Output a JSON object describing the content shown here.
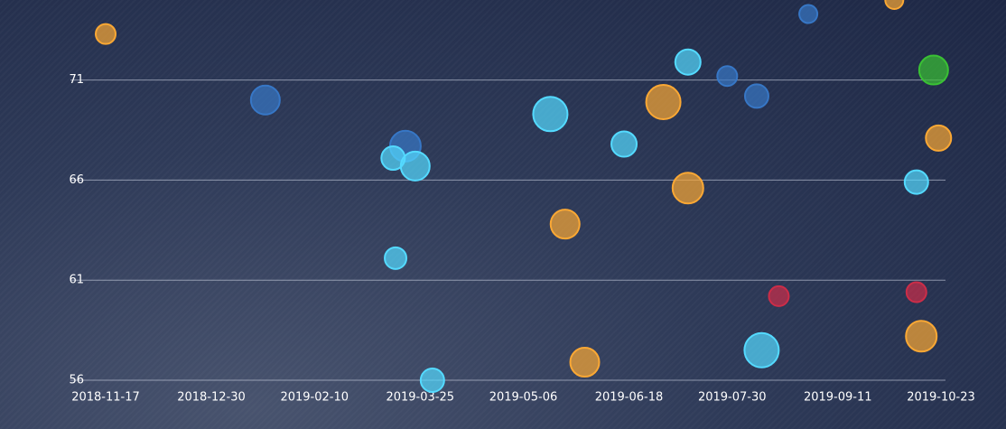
{
  "chart_data": {
    "type": "scatter",
    "xlim": [
      "2018-11-17",
      "2019-10-23"
    ],
    "xticks": [
      "2018-11-17",
      "2018-12-30",
      "2019-02-10",
      "2019-03-25",
      "2019-05-06",
      "2019-06-18",
      "2019-07-30",
      "2019-09-11",
      "2019-10-23"
    ],
    "ylim": [
      56,
      75
    ],
    "yticks": [
      56,
      61,
      66,
      71
    ],
    "grid": true,
    "series": [
      {
        "color": "#c8862a",
        "x": [
          "2018-11-17",
          "2019-05-23",
          "2019-05-31",
          "2019-07-02",
          "2019-07-12",
          "2019-10-04",
          "2019-10-22",
          "2019-10-15"
        ],
        "values": [
          73.3,
          63.8,
          56.9,
          69.9,
          65.6,
          75.0,
          68.1,
          58.2
        ],
        "sizes": [
          11,
          16,
          16,
          19,
          17,
          10,
          14,
          17
        ]
      },
      {
        "color": "#2c5f9e",
        "x": [
          "2019-01-21",
          "2019-03-19",
          "2019-07-28",
          "2019-08-09",
          "2019-08-30"
        ],
        "values": [
          70.0,
          67.7,
          71.2,
          70.2,
          74.3
        ],
        "sizes": [
          16,
          17,
          11,
          13,
          10
        ]
      },
      {
        "color": "#43aede",
        "x": [
          "2019-03-14",
          "2019-03-23",
          "2019-03-15",
          "2019-03-30",
          "2019-05-17",
          "2019-06-16",
          "2019-07-12",
          "2019-08-11",
          "2019-10-13"
        ],
        "values": [
          67.1,
          66.7,
          62.1,
          56.0,
          69.3,
          67.8,
          71.9,
          57.5,
          65.9
        ],
        "sizes": [
          13,
          16,
          12,
          13,
          19,
          14,
          14,
          19,
          13
        ]
      },
      {
        "color": "#a3243a",
        "x": [
          "2019-08-18",
          "2019-10-13"
        ],
        "values": [
          60.2,
          60.4
        ],
        "sizes": [
          11,
          11
        ]
      },
      {
        "color": "#2e9a2a",
        "x": [
          "2019-10-20"
        ],
        "values": [
          71.5
        ],
        "sizes": [
          16
        ]
      }
    ]
  }
}
